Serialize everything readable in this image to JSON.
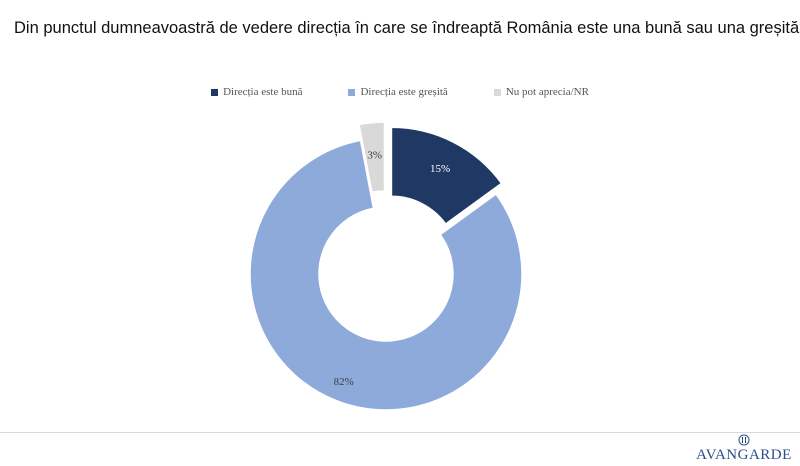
{
  "question": "Din punctul dumneavoastră de vedere direcția în care se îndreaptă România este una bună sau una greșită?",
  "chart_data": {
    "type": "pie",
    "variant": "donut-exploded",
    "title": "Din punctul dumneavoastră de vedere direcția în care se îndreaptă România este una bună sau una greșită?",
    "legend_position": "top",
    "series": [
      {
        "name": "Direcția este bună",
        "value": 15,
        "label": "15%",
        "color": "#1f3864"
      },
      {
        "name": "Direcția este greșită",
        "value": 82,
        "label": "82%",
        "color": "#8eaadb"
      },
      {
        "name": "Nu pot aprecia/NR",
        "value": 3,
        "label": "3%",
        "color": "#d9d9d9"
      }
    ]
  },
  "logo": {
    "text": "AVANGARDE",
    "color": "#2a4f86"
  }
}
